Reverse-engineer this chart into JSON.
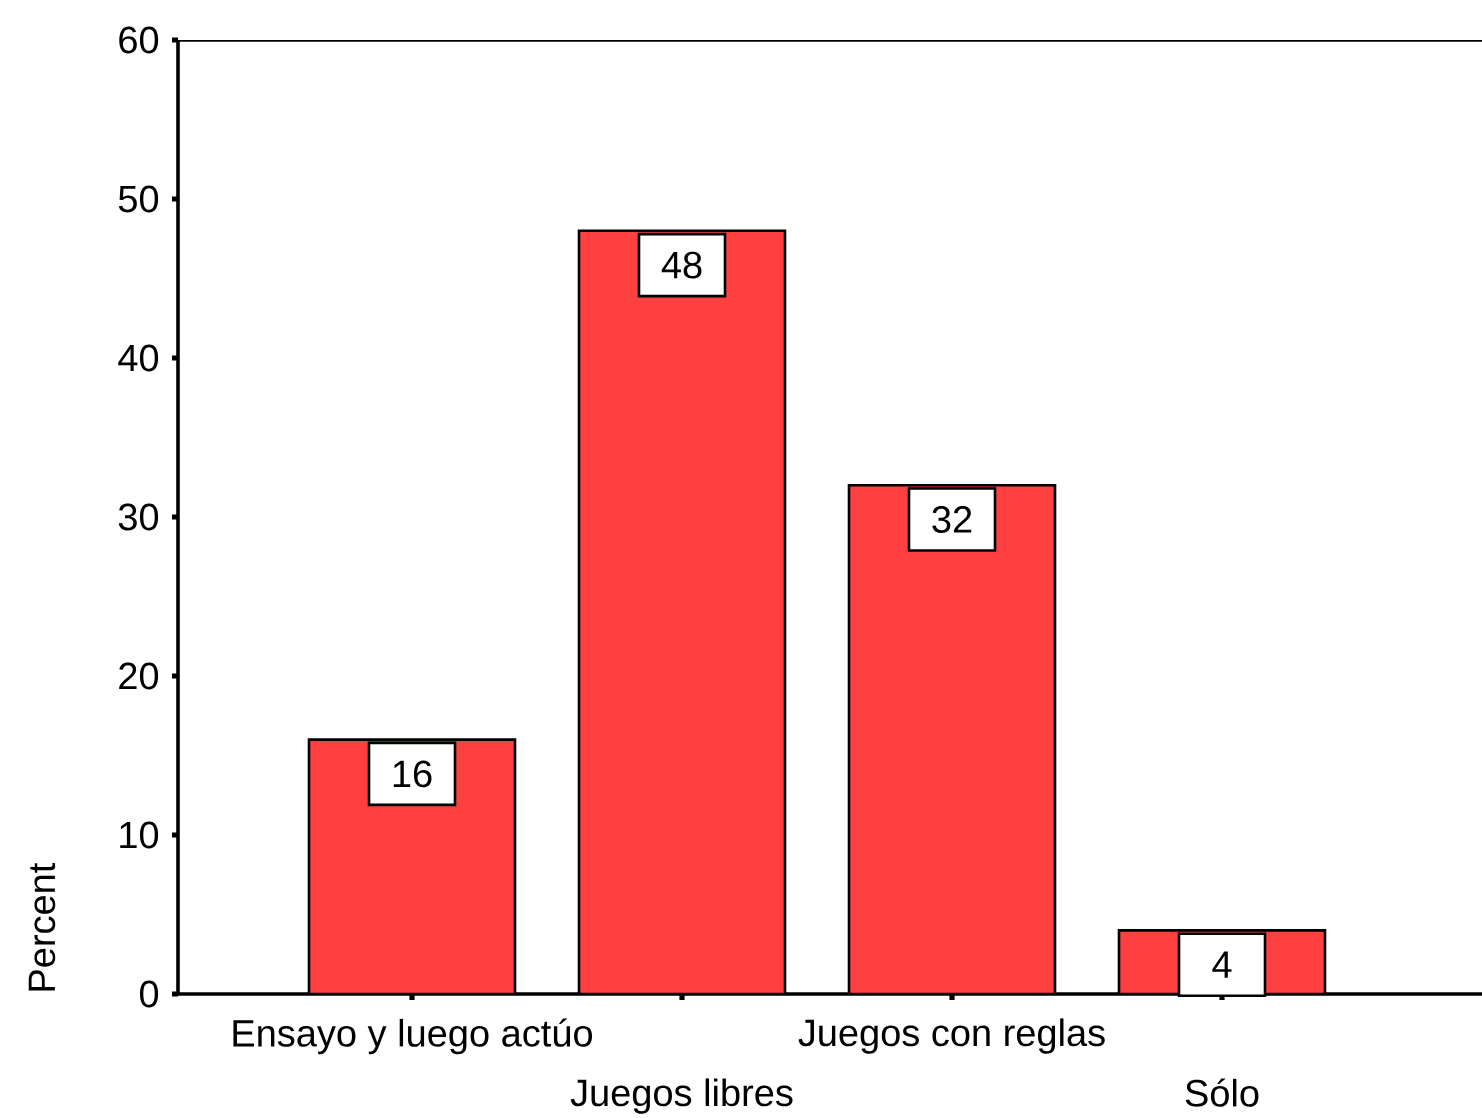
{
  "chart_data": {
    "type": "bar",
    "categories": [
      "Ensayo y luego actúo",
      "Juegos libres",
      "Juegos con reglas",
      "Sólo"
    ],
    "values": [
      16,
      48,
      32,
      4
    ],
    "color": "#ff4040",
    "ylabel": "Percent",
    "ylim": [
      0,
      60
    ],
    "yticks": [
      0,
      10,
      20,
      30,
      40,
      50,
      60
    ],
    "data_labels": true
  }
}
